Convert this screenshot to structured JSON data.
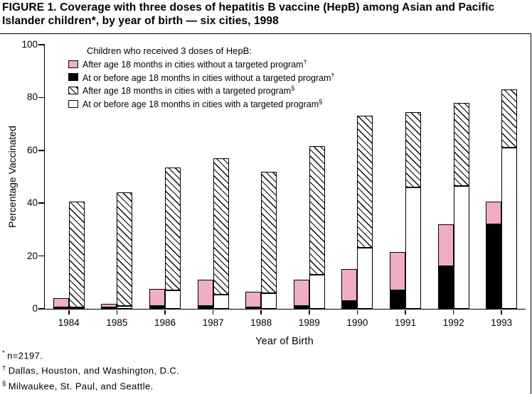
{
  "title": "FIGURE 1. Coverage with three doses of hepatitis B vaccine (HepB) among Asian and Pacific Islander children*, by year of birth — six cities, 1998",
  "legend": {
    "title": "Children who received 3 doses of HepB:",
    "entries": [
      {
        "swatch": "pink",
        "label": "After age 18 months in cities without a targeted program",
        "marker": "†"
      },
      {
        "swatch": "black",
        "label": "At or before age 18 months in cities without a targeted program",
        "marker": "†"
      },
      {
        "swatch": "hatch",
        "label": "After age 18 months in cities with a targeted program",
        "marker": "§"
      },
      {
        "swatch": "white",
        "label": "At or before age 18 months in cities with a targeted program",
        "marker": "§"
      }
    ]
  },
  "footnotes": [
    {
      "marker": "*",
      "text": "n=2197."
    },
    {
      "marker": "†",
      "text": "Dallas, Houston, and Washington, D.C."
    },
    {
      "marker": "§",
      "text": "Milwaukee, St. Paul, and Seattle."
    }
  ],
  "colors": {
    "pink": "#f1aec3",
    "black": "#000000",
    "white": "#ffffff",
    "hatch_line": "#000000"
  },
  "chart_data": {
    "type": "bar",
    "stacked": true,
    "categories": [
      "1984",
      "1985",
      "1986",
      "1987",
      "1988",
      "1989",
      "1990",
      "1991",
      "1992",
      "1993"
    ],
    "groups": [
      {
        "name": "Cities without a targeted program",
        "segments": [
          {
            "series": "At or before age 18 months (black)",
            "values": [
              0.5,
              0.5,
              1,
              1,
              0.5,
              1,
              3,
              7,
              16,
              32
            ]
          },
          {
            "series": "After age 18 months (pink)",
            "values": [
              3.5,
              1.5,
              6.5,
              10,
              6,
              10,
              12,
              14.5,
              16,
              8.5
            ]
          }
        ],
        "totals": [
          4,
          2,
          7.5,
          11,
          6.5,
          11,
          15,
          21.5,
          32,
          40.5
        ]
      },
      {
        "name": "Cities with a targeted program",
        "segments": [
          {
            "series": "At or before age 18 months (white)",
            "values": [
              0.5,
              1,
              7,
              5.5,
              6,
              13,
              23,
              46,
              46.5,
              61
            ]
          },
          {
            "series": "After age 18 months (hatched)",
            "values": [
              40,
              43,
              46.5,
              51.5,
              46,
              48.5,
              50,
              28.5,
              31.5,
              22
            ]
          }
        ],
        "totals": [
          40.5,
          44,
          53.5,
          57,
          52,
          61.5,
          73,
          74.5,
          78,
          83
        ]
      }
    ],
    "xlabel": "Year of Birth",
    "ylabel": "Percentage Vaccinated",
    "ylim": [
      0,
      100
    ],
    "yticks": [
      0,
      20,
      40,
      60,
      80,
      100
    ],
    "legend_position": "top-left-inside",
    "grid": false
  }
}
